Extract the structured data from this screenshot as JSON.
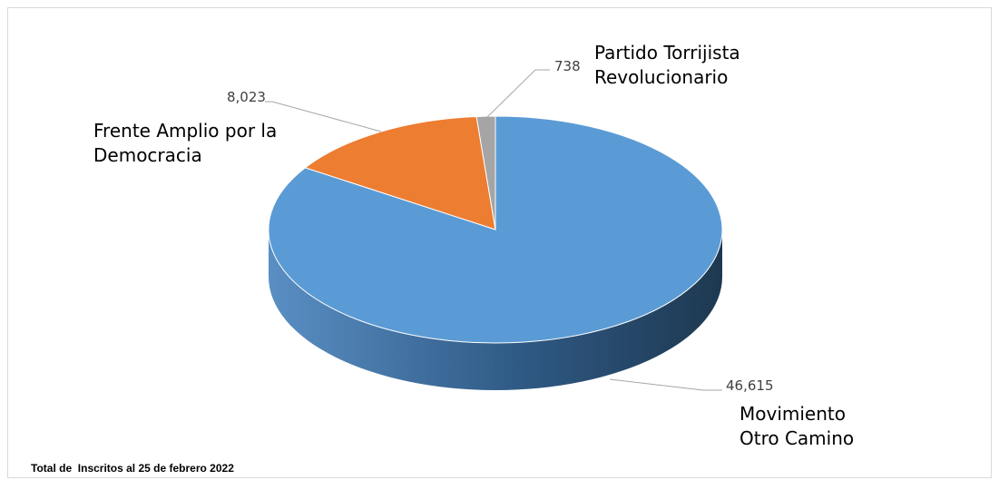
{
  "chart_data": {
    "type": "pie3d",
    "categories": [
      "Movimiento Otro Camino",
      "Frente Amplio por la Democracia",
      "Partido Torrijista Revolucionario"
    ],
    "values": [
      46615,
      8023,
      738
    ],
    "value_labels": [
      "46,615",
      "8,023",
      "738"
    ],
    "colors": [
      "#5b9bd5",
      "#ed7d31",
      "#a5a5a5"
    ],
    "note": "Total de  Inscritos al 25 de febrero 2022"
  }
}
